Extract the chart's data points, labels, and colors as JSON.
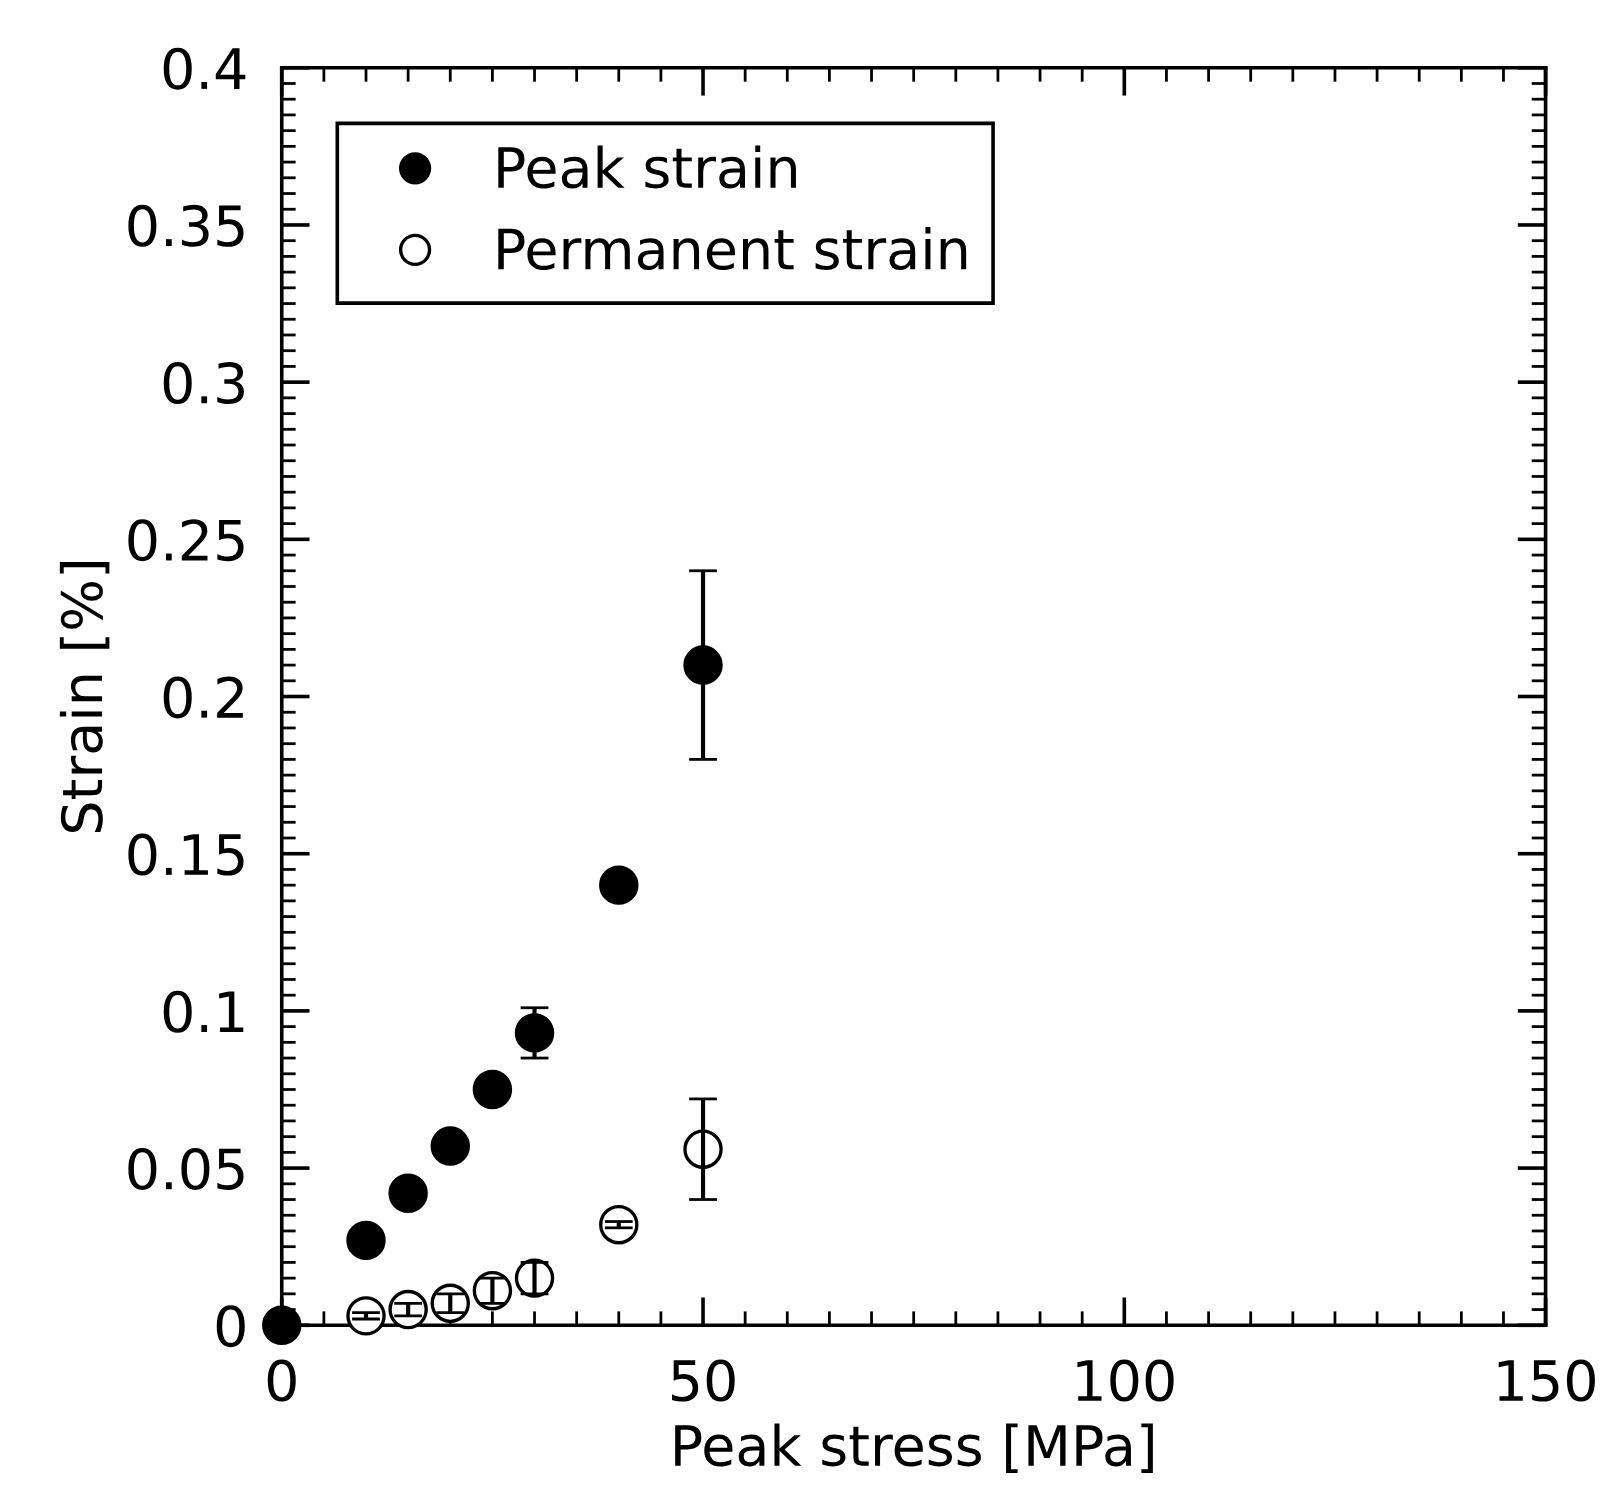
{
  "chart_data": {
    "type": "scatter",
    "xlabel": "Peak stress [MPa]",
    "ylabel": "Strain [%]",
    "xlim": [
      0,
      150
    ],
    "xticks": [
      0,
      50,
      100,
      150
    ],
    "ylim": [
      0,
      0.4
    ],
    "yticks": [
      0,
      0.05,
      0.1,
      0.15,
      0.2,
      0.25,
      0.3,
      0.35,
      0.4
    ],
    "grid": false,
    "legend": "top left",
    "marker": "circle",
    "series": [
      {
        "name": "Peak strain",
        "color": "#000000",
        "x": [
          0,
          10,
          15,
          20,
          25,
          30,
          40,
          50
        ],
        "values": [
          0,
          0.027,
          0.042,
          0.057,
          0.075,
          0.093,
          0.14,
          0.21
        ],
        "errors": [
          null,
          null,
          null,
          null,
          null,
          0.008,
          null,
          0.03
        ]
      },
      {
        "name": "Permanent strain",
        "color": "#ffffff",
        "x": [
          10,
          15,
          20,
          25,
          30,
          40,
          50
        ],
        "values": [
          0.003,
          0.005,
          0.007,
          0.011,
          0.015,
          0.032,
          0.056
        ],
        "errors": [
          0.001,
          0.002,
          0.003,
          0.004,
          0.005,
          0.001,
          0.016
        ]
      }
    ]
  }
}
